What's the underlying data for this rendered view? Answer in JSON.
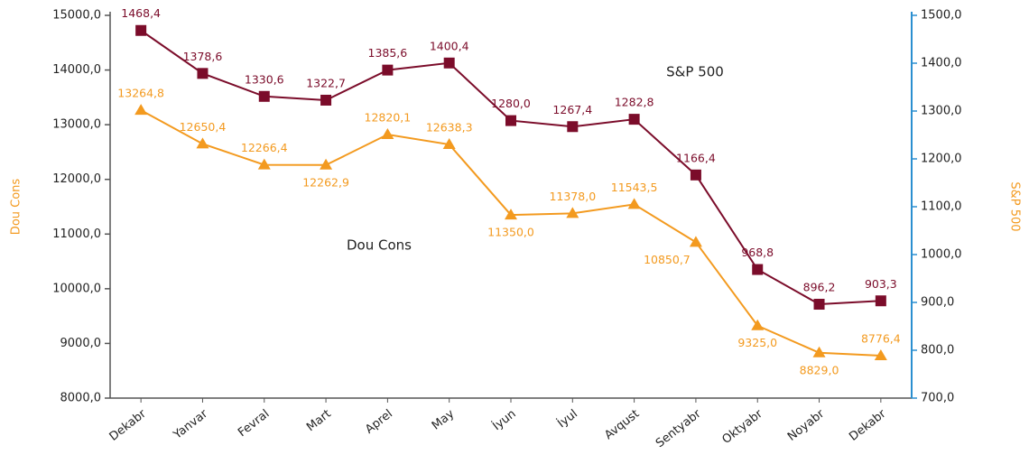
{
  "chart_data": {
    "type": "line",
    "categories": [
      "Dekabr",
      "Yanvar",
      "Fevral",
      "Mart",
      "Aprel",
      "May",
      "İyun",
      "İyul",
      "Avqust",
      "Sentyabr",
      "Oktyabr",
      "Noyabr",
      "Dekabr"
    ],
    "series": [
      {
        "name": "Dou Cons",
        "color": "#f39a1f",
        "marker": "triangle",
        "values": [
          13264.8,
          12650.4,
          12266.4,
          12262.9,
          12820.1,
          12638.3,
          11350.0,
          11378.0,
          11543.5,
          10850.7,
          9325.0,
          8829.0,
          8776.4
        ],
        "value_labels": [
          "13264,8",
          "12650,4",
          "12266,4",
          "12262,9",
          "12820,1",
          "12638,3",
          "11350,0",
          "11378,0",
          "11543,5",
          "10850,7",
          "9325,0",
          "8829,0",
          "8776,4"
        ]
      },
      {
        "name": "S&P 500",
        "color": "#7b0c2a",
        "marker": "square",
        "axis": "y2",
        "values": [
          1468.4,
          1378.6,
          1330.6,
          1322.7,
          1385.6,
          1400.4,
          1280.0,
          1267.4,
          1282.8,
          1166.4,
          968.8,
          896.2,
          903.3
        ],
        "value_labels": [
          "1468,4",
          "1378,6",
          "1330,6",
          "1322,7",
          "1385,6",
          "1400,4",
          "1280,0",
          "1267,4",
          "1282,8",
          "1166,4",
          "968,8",
          "896,2",
          "903,3"
        ]
      }
    ],
    "ylabel": "Dou Cons",
    "y2label": "S&P 500",
    "ylim": [
      8000,
      15000
    ],
    "yticks": [
      {
        "value": 8000,
        "label": "8000,0"
      },
      {
        "value": 9000,
        "label": "9000,0"
      },
      {
        "value": 10000,
        "label": "10000,0"
      },
      {
        "value": 11000,
        "label": "11000,0"
      },
      {
        "value": 12000,
        "label": "12000,0"
      },
      {
        "value": 13000,
        "label": "13000,0"
      },
      {
        "value": 14000,
        "label": "14000,0"
      },
      {
        "value": 15000,
        "label": "15000,0"
      }
    ],
    "y2lim": [
      700,
      1500
    ],
    "y2ticks": [
      {
        "value": 700,
        "label": "700,0"
      },
      {
        "value": 800,
        "label": "800,0"
      },
      {
        "value": 900,
        "label": "900,0"
      },
      {
        "value": 1000,
        "label": "1000,0"
      },
      {
        "value": 1100,
        "label": "1100,0"
      },
      {
        "value": 1200,
        "label": "1200,0"
      },
      {
        "value": 1300,
        "label": "1300,0"
      },
      {
        "value": 1400,
        "label": "1400,0"
      },
      {
        "value": 1500,
        "label": "1500,0"
      }
    ],
    "grid": false
  }
}
